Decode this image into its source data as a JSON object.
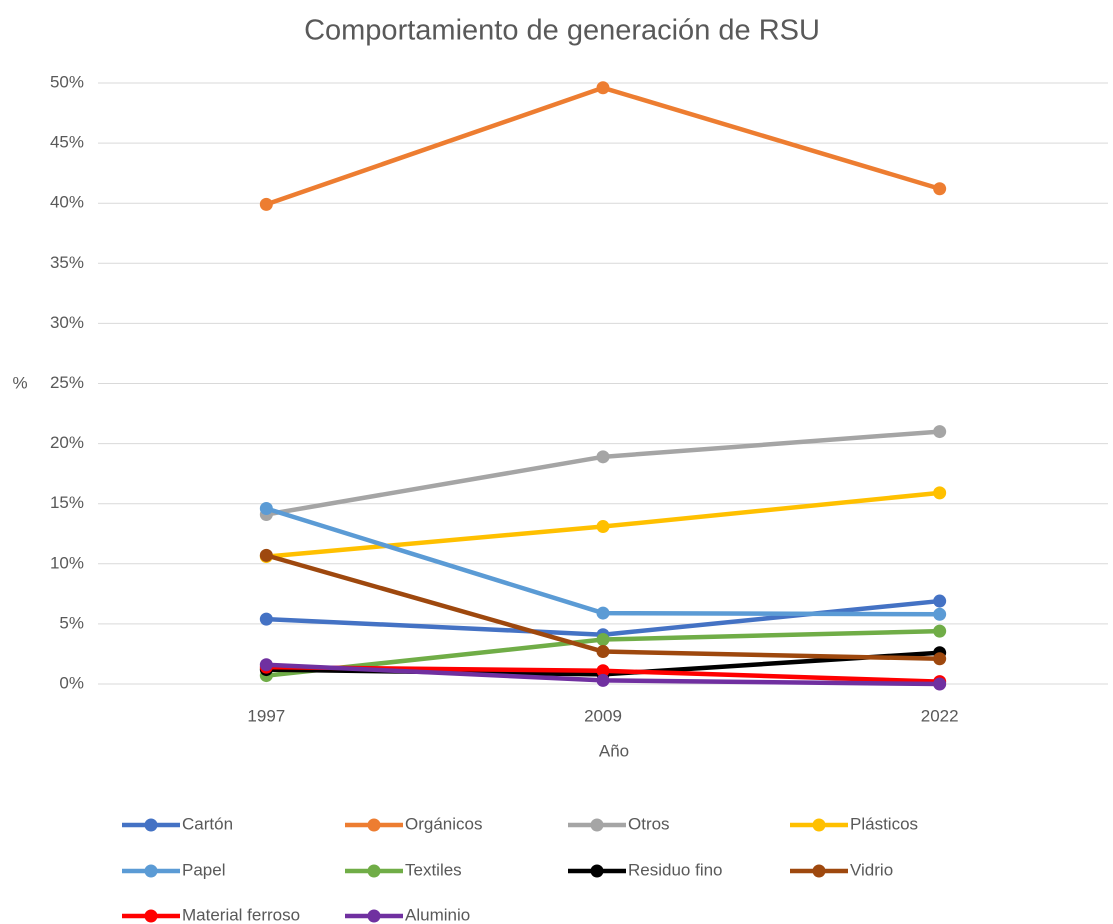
{
  "chart_data": {
    "type": "line",
    "title": "Comportamiento de generación de RSU",
    "x_label": "Año",
    "y_label": "%",
    "categories": [
      "1997",
      "2009",
      "2022"
    ],
    "ylim": [
      0,
      50
    ],
    "yticks": [
      {
        "value": 0,
        "label": "0%"
      },
      {
        "value": 5,
        "label": "5%"
      },
      {
        "value": 10,
        "label": "10%"
      },
      {
        "value": 15,
        "label": "15%"
      },
      {
        "value": 20,
        "label": "20%"
      },
      {
        "value": 25,
        "label": "25%"
      },
      {
        "value": 30,
        "label": "30%"
      },
      {
        "value": 35,
        "label": "35%"
      },
      {
        "value": 40,
        "label": "40%"
      },
      {
        "value": 45,
        "label": "45%"
      },
      {
        "value": 50,
        "label": "50%"
      }
    ],
    "grid": true,
    "legend": "bottom",
    "series": [
      {
        "name": "Cartón",
        "color": "#4472c4",
        "values": [
          5.4,
          4.1,
          6.9
        ]
      },
      {
        "name": "Orgánicos",
        "color": "#ed7d31",
        "values": [
          39.9,
          49.6,
          41.2
        ]
      },
      {
        "name": "Otros",
        "color": "#a5a5a5",
        "values": [
          14.1,
          18.9,
          21.0
        ]
      },
      {
        "name": "Plásticos",
        "color": "#ffc000",
        "values": [
          10.6,
          13.1,
          15.9
        ]
      },
      {
        "name": "Papel",
        "color": "#5b9bd5",
        "values": [
          14.6,
          5.9,
          5.8
        ]
      },
      {
        "name": "Textiles",
        "color": "#70ad47",
        "values": [
          0.7,
          3.7,
          4.4
        ]
      },
      {
        "name": "Residuo fino",
        "color": "#000000",
        "values": [
          1.2,
          0.8,
          2.6
        ]
      },
      {
        "name": "Vidrio",
        "color": "#9e480e",
        "values": [
          10.7,
          2.7,
          2.1
        ]
      },
      {
        "name": "Material ferroso",
        "color": "#ff0000",
        "values": [
          1.4,
          1.1,
          0.2
        ]
      },
      {
        "name": "Aluminio",
        "color": "#7030a0",
        "values": [
          1.6,
          0.3,
          0.0
        ]
      }
    ]
  }
}
